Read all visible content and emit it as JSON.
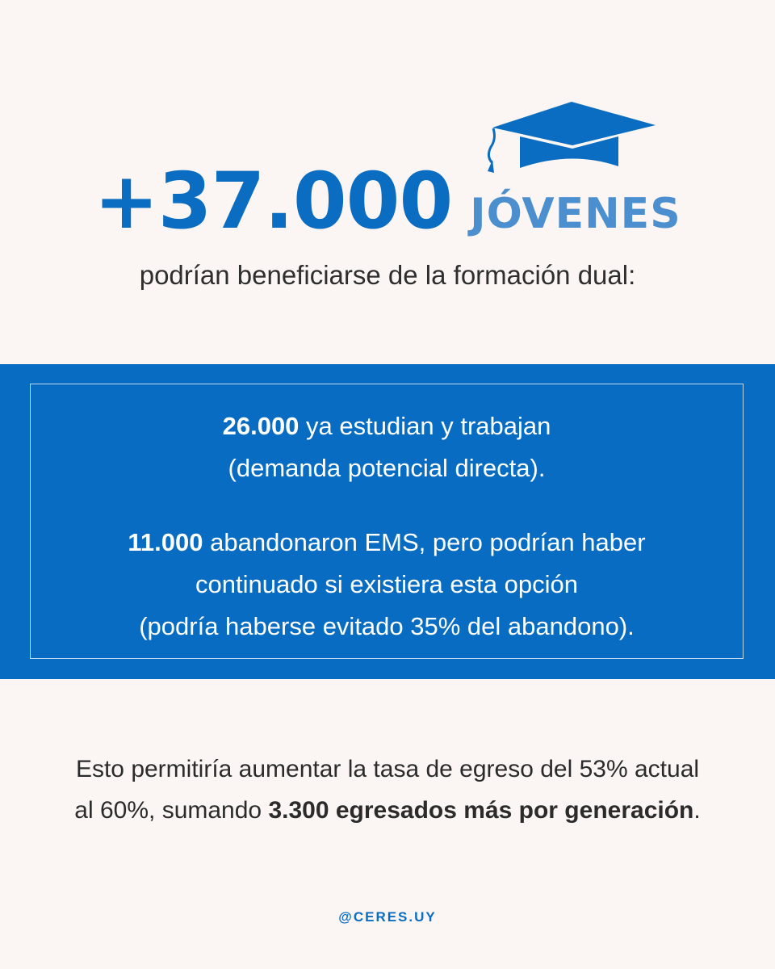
{
  "header": {
    "big_number": "+37.000",
    "highlight_word": "JÓVENES",
    "subtitle": "podrían beneficiarse de la formación dual:",
    "icon": "graduation-cap-icon"
  },
  "stats": [
    {
      "number": "26.000",
      "line1_rest": " ya estudian y trabajan",
      "line2": " (demanda potencial directa)."
    },
    {
      "number": "11.000",
      "line1_rest": " abandonaron EMS, pero podrían haber",
      "line2": "continuado si existiera esta opción",
      "line3": "(podría haberse evitado 35% del abandono)."
    }
  ],
  "conclusion": {
    "line1": "Esto permitiría aumentar la tasa de egreso del 53% actual",
    "line2_start": "al 60%, sumando ",
    "line2_bold": "3.300 egresados más por generación",
    "line2_end": "."
  },
  "footer": {
    "handle": "@CERES.UY"
  },
  "colors": {
    "background": "#fbf6f3",
    "primary_blue": "#086dc2",
    "light_blue": "#4c8fcf",
    "text_dark": "#2b2b2b"
  }
}
